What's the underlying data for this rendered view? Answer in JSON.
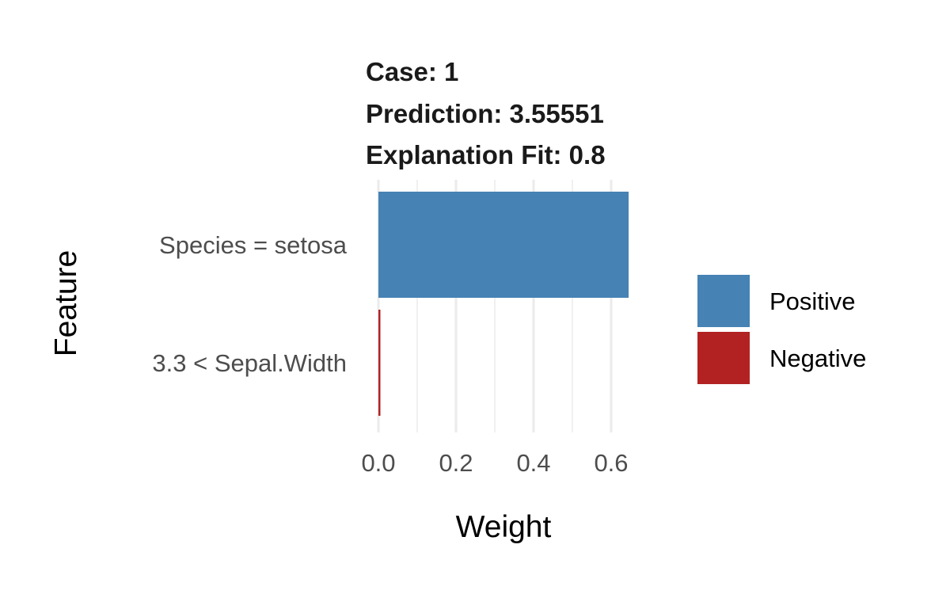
{
  "chart_data": {
    "type": "bar",
    "orientation": "horizontal",
    "title_lines": [
      "Case: 1",
      "Prediction: 3.55551",
      "Explanation Fit: 0.8"
    ],
    "xlabel": "Weight",
    "ylabel": "Feature",
    "categories": [
      "Species = setosa",
      "3.3 < Sepal.Width"
    ],
    "values": [
      0.645,
      0.004
    ],
    "effect": [
      "Positive",
      "Negative"
    ],
    "xlim": [
      0.0,
      0.65
    ],
    "xticks": [
      0.0,
      0.2,
      0.4,
      0.6
    ],
    "xtick_labels": [
      "0.0",
      "0.2",
      "0.4",
      "0.6"
    ],
    "grid": "vertical-major-minor",
    "legend": {
      "placement": "right",
      "entries": [
        {
          "label": "Positive",
          "color": "#4682B4"
        },
        {
          "label": "Negative",
          "color": "#B22222"
        }
      ]
    }
  }
}
